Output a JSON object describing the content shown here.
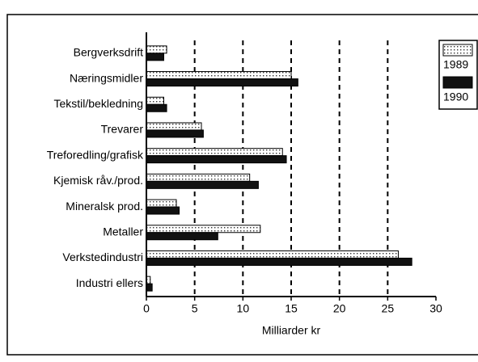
{
  "chart_data": {
    "type": "barh",
    "xlabel": "Milliarder kr",
    "categories": [
      "Bergverksdrift",
      "Næringsmidler",
      "Tekstil/bekledning",
      "Trevarer",
      "Treforedling/grafisk",
      "Kjemisk råv./prod.",
      "Mineralsk prod.",
      "Metaller",
      "Verkstedindustri",
      "Industri ellers"
    ],
    "series": [
      {
        "name": "1989",
        "color": "#e4e4e4",
        "values": [
          2.1,
          15.0,
          1.8,
          5.7,
          14.1,
          10.7,
          3.1,
          11.8,
          26.1,
          0.4
        ]
      },
      {
        "name": "1990",
        "color": "#111111",
        "values": [
          1.8,
          15.7,
          2.1,
          5.9,
          14.5,
          11.6,
          3.4,
          7.4,
          27.5,
          0.6
        ]
      }
    ],
    "xlim": [
      0,
      30
    ],
    "xticks": [
      0,
      5,
      10,
      15,
      20,
      25,
      30
    ],
    "grid": true,
    "legend": "right"
  }
}
